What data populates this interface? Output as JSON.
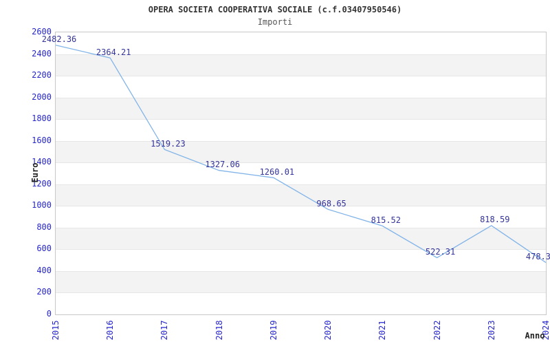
{
  "chart_data": {
    "type": "line",
    "title": "OPERA SOCIETA COOPERATIVA SOCIALE (c.f.03407950546)",
    "subtitle": "Importi",
    "xlabel": "Anno",
    "ylabel": "Euro",
    "x": [
      2015,
      2016,
      2017,
      2018,
      2019,
      2020,
      2021,
      2022,
      2023,
      2024
    ],
    "series": [
      {
        "name": "Importi",
        "values": [
          2482.36,
          2364.21,
          1519.23,
          1327.06,
          1260.01,
          968.65,
          815.52,
          522.31,
          818.59,
          478.3
        ],
        "labels": [
          "2482.36",
          "2364.21",
          "1519.23",
          "1327.06",
          "1260.01",
          "968.65",
          "815.52",
          "522.31",
          "818.59",
          "478.3"
        ]
      }
    ],
    "ylim": [
      0,
      2600
    ],
    "ytick_step": 200,
    "legend": "none",
    "grid": "alternating-horizontal-bands",
    "colors": {
      "line": "#82b4e8",
      "tick_label": "#2626cc",
      "data_label": "#333399",
      "band": "#f3f3f3",
      "grid_line": "#e6e6e6",
      "plot_border": "#c8c8c8",
      "title": "#333333",
      "subtitle": "#555555",
      "axis_title": "#222222"
    }
  }
}
